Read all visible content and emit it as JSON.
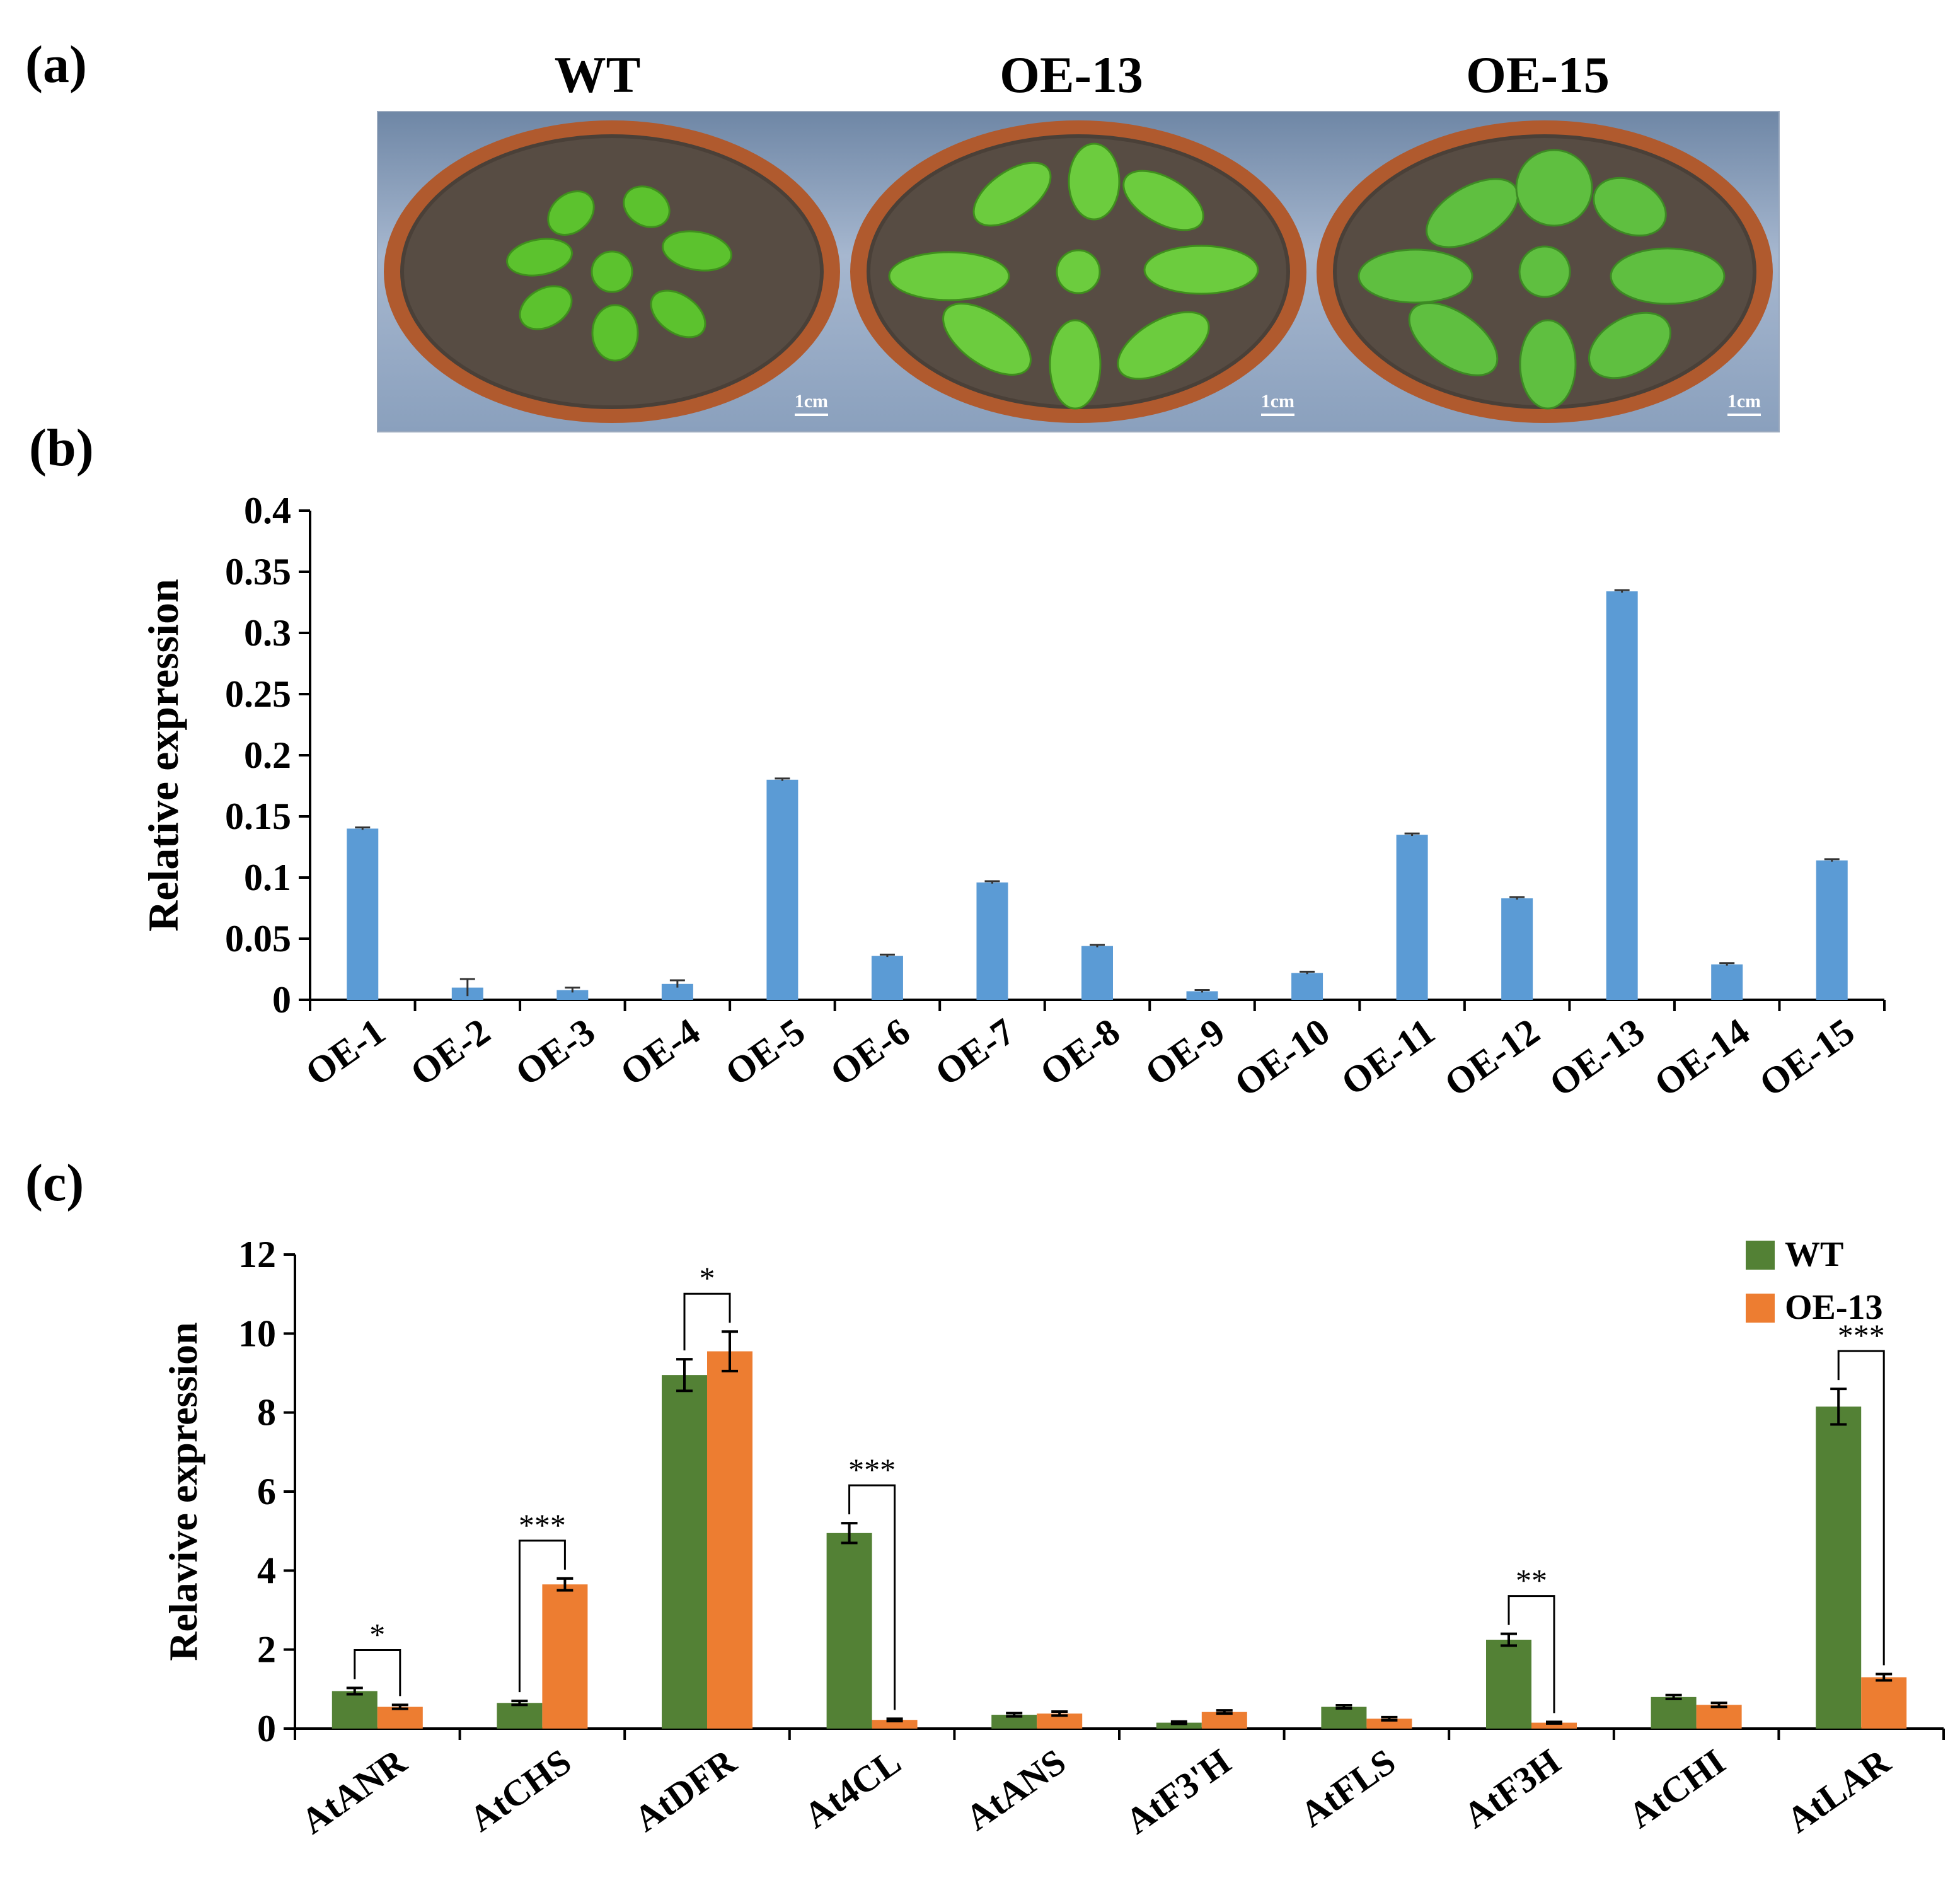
{
  "panels": {
    "a": "(a)",
    "b": "(b)",
    "c": "(c)"
  },
  "photos": [
    {
      "label": "WT",
      "scale": "1cm"
    },
    {
      "label": "OE-13",
      "scale": "1cm"
    },
    {
      "label": "OE-15",
      "scale": "1cm"
    }
  ],
  "colors": {
    "blue": "#5b9bd5",
    "green": "#538135",
    "orange": "#ed7d31"
  },
  "chart_data": [
    {
      "type": "bar",
      "title": "",
      "xlabel": "",
      "ylabel": "Relative expression",
      "ylim": [
        0,
        0.4
      ],
      "yticks": [
        0,
        0.05,
        0.1,
        0.15,
        0.2,
        0.25,
        0.3,
        0.35,
        0.4
      ],
      "ytick_labels": [
        "0",
        "0.05",
        "0.1",
        "0.15",
        "0.2",
        "0.25",
        "0.3",
        "0.35",
        "0.4"
      ],
      "categories": [
        "OE-1",
        "OE-2",
        "OE-3",
        "OE-4",
        "OE-5",
        "OE-6",
        "OE-7",
        "OE-8",
        "OE-9",
        "OE-10",
        "OE-11",
        "OE-12",
        "OE-13",
        "OE-14",
        "OE-15"
      ],
      "values": [
        0.14,
        0.01,
        0.008,
        0.013,
        0.18,
        0.036,
        0.096,
        0.044,
        0.007,
        0.022,
        0.135,
        0.083,
        0.334,
        0.029,
        0.114
      ],
      "errors": [
        0.001,
        0.007,
        0.002,
        0.003,
        0.001,
        0.001,
        0.001,
        0.001,
        0.001,
        0.001,
        0.001,
        0.001,
        0.001,
        0.001,
        0.001
      ]
    },
    {
      "type": "bar",
      "title": "",
      "xlabel": "",
      "ylabel": "Relavive expression",
      "ylim": [
        0,
        12
      ],
      "yticks": [
        0,
        2,
        4,
        6,
        8,
        10,
        12
      ],
      "ytick_labels": [
        "0",
        "2",
        "4",
        "6",
        "8",
        "10",
        "12"
      ],
      "categories": [
        "AtANR",
        "AtCHS",
        "AtDFR",
        "At4CL",
        "AtANS",
        "AtF3'H",
        "AtFLS",
        "AtF3H",
        "AtCHI",
        "AtLAR"
      ],
      "series": [
        {
          "name": "WT",
          "values": [
            0.95,
            0.65,
            8.95,
            4.95,
            0.35,
            0.15,
            0.55,
            2.25,
            0.8,
            8.15
          ],
          "errors": [
            0.08,
            0.05,
            0.4,
            0.25,
            0.04,
            0.03,
            0.04,
            0.15,
            0.05,
            0.45
          ]
        },
        {
          "name": "OE-13",
          "values": [
            0.55,
            3.65,
            9.55,
            0.22,
            0.38,
            0.42,
            0.25,
            0.15,
            0.6,
            1.3
          ],
          "errors": [
            0.05,
            0.15,
            0.5,
            0.03,
            0.05,
            0.04,
            0.04,
            0.02,
            0.05,
            0.08
          ]
        }
      ],
      "significance": [
        {
          "category": "AtANR",
          "label": "*"
        },
        {
          "category": "AtCHS",
          "label": "***"
        },
        {
          "category": "AtDFR",
          "label": "*"
        },
        {
          "category": "At4CL",
          "label": "***"
        },
        {
          "category": "AtF3H",
          "label": "**"
        },
        {
          "category": "AtLAR",
          "label": "***"
        }
      ],
      "legend": "top-right"
    }
  ]
}
